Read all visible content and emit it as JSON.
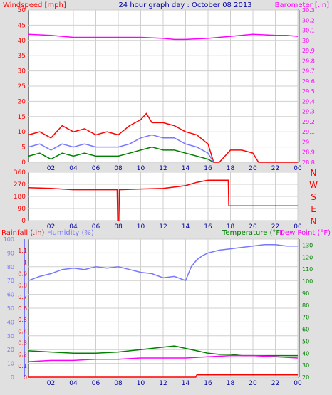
{
  "header": {
    "wind_label": "Windspeed [mph]",
    "title": "24 hour graph day : October 08 2013",
    "baro_label": "Barometer [.in]"
  },
  "colors": {
    "red": "#ff0000",
    "magenta": "#ff00ff",
    "blue": "#7777ff",
    "green": "#008000",
    "title_blue": "#0000a0",
    "yellow": "#ffff00",
    "grid": "#cfcfcf",
    "plot_bg": "#ffffff",
    "frame": "#000000"
  },
  "chart_data": [
    {
      "type": "line",
      "title": "24 hour graph day : October 08 2013",
      "ylabel": "Windspeed [mph]",
      "y2label": "Barometer [.in]",
      "x_ticks": [
        "02",
        "04",
        "06",
        "08",
        "10",
        "12",
        "14",
        "16",
        "18",
        "20",
        "22",
        "00"
      ],
      "xlim": [
        0,
        24
      ],
      "ylim": [
        0,
        50
      ],
      "y_ticks": [
        0,
        5,
        10,
        15,
        20,
        25,
        30,
        35,
        40,
        45,
        50
      ],
      "y2lim": [
        28.8,
        30.3
      ],
      "y2_ticks": [
        "28.8",
        "28.9",
        "29",
        "29.1",
        "29.2",
        "29.3",
        "29.4",
        "29.5",
        "29.6",
        "29.7",
        "29.8",
        "29.9",
        "30",
        "30.1",
        "30.2",
        "30.3"
      ],
      "grid": true,
      "series": [
        {
          "color": "red",
          "axis": "y",
          "x": [
            0,
            1,
            2,
            3,
            4,
            5,
            6,
            7,
            8,
            9,
            10,
            10.5,
            11,
            12,
            13,
            14,
            15,
            16,
            16.5,
            17,
            18,
            19,
            20,
            20.5,
            21,
            22,
            23,
            24
          ],
          "y": [
            9,
            10,
            8,
            12,
            10,
            11,
            9,
            10,
            9,
            12,
            14,
            16,
            13,
            13,
            12,
            10,
            9,
            6,
            0,
            0,
            4,
            4,
            3,
            0,
            0,
            0,
            0,
            0
          ]
        },
        {
          "color": "blue",
          "axis": "y",
          "x": [
            0,
            1,
            2,
            3,
            4,
            5,
            6,
            7,
            8,
            9,
            10,
            11,
            12,
            13,
            14,
            15,
            16,
            16.5
          ],
          "y": [
            5,
            6,
            4,
            6,
            5,
            6,
            5,
            5,
            5,
            6,
            8,
            9,
            8,
            8,
            6,
            5,
            3,
            0
          ]
        },
        {
          "color": "green",
          "axis": "y",
          "x": [
            0,
            1,
            2,
            3,
            4,
            5,
            6,
            7,
            8,
            9,
            10,
            11,
            12,
            13,
            14,
            15,
            16,
            16.5
          ],
          "y": [
            2,
            3,
            1,
            3,
            2,
            3,
            2,
            2,
            2,
            3,
            4,
            5,
            4,
            4,
            3,
            2,
            1,
            0
          ]
        },
        {
          "color": "magenta",
          "axis": "y2",
          "x": [
            0,
            2,
            4,
            6,
            8,
            10,
            12,
            13,
            14,
            16,
            18,
            20,
            22,
            23,
            24
          ],
          "y": [
            30.06,
            30.05,
            30.03,
            30.03,
            30.03,
            30.03,
            30.02,
            30.01,
            30.01,
            30.02,
            30.04,
            30.06,
            30.05,
            30.05,
            30.04
          ]
        }
      ]
    },
    {
      "type": "line",
      "ylabel": "",
      "x_ticks": [
        "02",
        "04",
        "06",
        "08",
        "10",
        "12",
        "14",
        "16",
        "18",
        "20",
        "22",
        "00"
      ],
      "xlim": [
        0,
        24
      ],
      "ylim": [
        0,
        360
      ],
      "y_ticks": [
        0,
        90,
        180,
        270,
        360
      ],
      "compass_labels": [
        "N",
        "W",
        "S",
        "E",
        "N"
      ],
      "grid": true,
      "series": [
        {
          "color": "red",
          "axis": "y",
          "x": [
            0,
            2,
            4,
            6,
            7.9,
            7.95,
            8.05,
            8.1,
            10,
            12,
            14,
            15,
            16,
            17,
            17.8,
            17.85,
            18,
            19,
            24
          ],
          "y": [
            245,
            240,
            230,
            230,
            230,
            0,
            0,
            230,
            235,
            240,
            260,
            285,
            300,
            300,
            300,
            110,
            110,
            110,
            110
          ]
        }
      ]
    },
    {
      "type": "line",
      "ylabel": "Rainfall (.in)",
      "y_mid_label": "Humidity (%)",
      "y2label": "Temperature (°F)",
      "y3label": "Dew Point (°F)",
      "x_ticks": [
        "02",
        "04",
        "06",
        "08",
        "10",
        "12",
        "14",
        "16",
        "18",
        "20",
        "22",
        "00"
      ],
      "xlim": [
        0,
        24
      ],
      "rain_ticks": [
        "0",
        "0.1",
        "0.2",
        "0.3",
        "0.4",
        "0.5",
        "0.6",
        "0.7",
        "0.8",
        "0.9",
        "1",
        "1.1"
      ],
      "rain_lim": [
        0,
        1.2
      ],
      "humidity_ticks": [
        0,
        10,
        20,
        30,
        40,
        50,
        60,
        70,
        80,
        90,
        100
      ],
      "humidity_lim": [
        0,
        100
      ],
      "temp_ticks": [
        20,
        30,
        40,
        50,
        60,
        70,
        80,
        90,
        100,
        110,
        120,
        130
      ],
      "temp_lim": [
        20,
        135
      ],
      "grid": true,
      "series": [
        {
          "color": "blue",
          "axis": "humidity",
          "x": [
            0,
            1,
            2,
            3,
            4,
            5,
            6,
            7,
            8,
            9,
            10,
            11,
            12,
            13,
            14,
            14.5,
            15,
            15.5,
            16,
            17,
            18,
            19,
            20,
            21,
            22,
            23,
            24
          ],
          "y": [
            70,
            73,
            75,
            78,
            79,
            78,
            80,
            79,
            80,
            78,
            76,
            75,
            72,
            73,
            70,
            80,
            85,
            88,
            90,
            92,
            93,
            94,
            95,
            96,
            96,
            95,
            95
          ]
        },
        {
          "color": "green",
          "axis": "temp",
          "x": [
            0,
            2,
            4,
            6,
            8,
            10,
            12,
            13,
            14,
            15,
            16,
            17,
            18,
            19,
            20,
            22,
            24
          ],
          "y": [
            42,
            41,
            40,
            40,
            41,
            43,
            45,
            46,
            44,
            42,
            40,
            39,
            39,
            38,
            38,
            38,
            38
          ]
        },
        {
          "color": "magenta",
          "axis": "temp",
          "x": [
            0,
            2,
            4,
            6,
            8,
            10,
            12,
            14,
            16,
            18,
            20,
            22,
            24
          ],
          "y": [
            33,
            34,
            34,
            35,
            35,
            36,
            36,
            36,
            37,
            38,
            38,
            37,
            36
          ]
        },
        {
          "color": "red",
          "axis": "rain",
          "x": [
            0,
            14.9,
            15,
            24
          ],
          "y": [
            0,
            0,
            0.02,
            0.02
          ]
        }
      ]
    }
  ]
}
